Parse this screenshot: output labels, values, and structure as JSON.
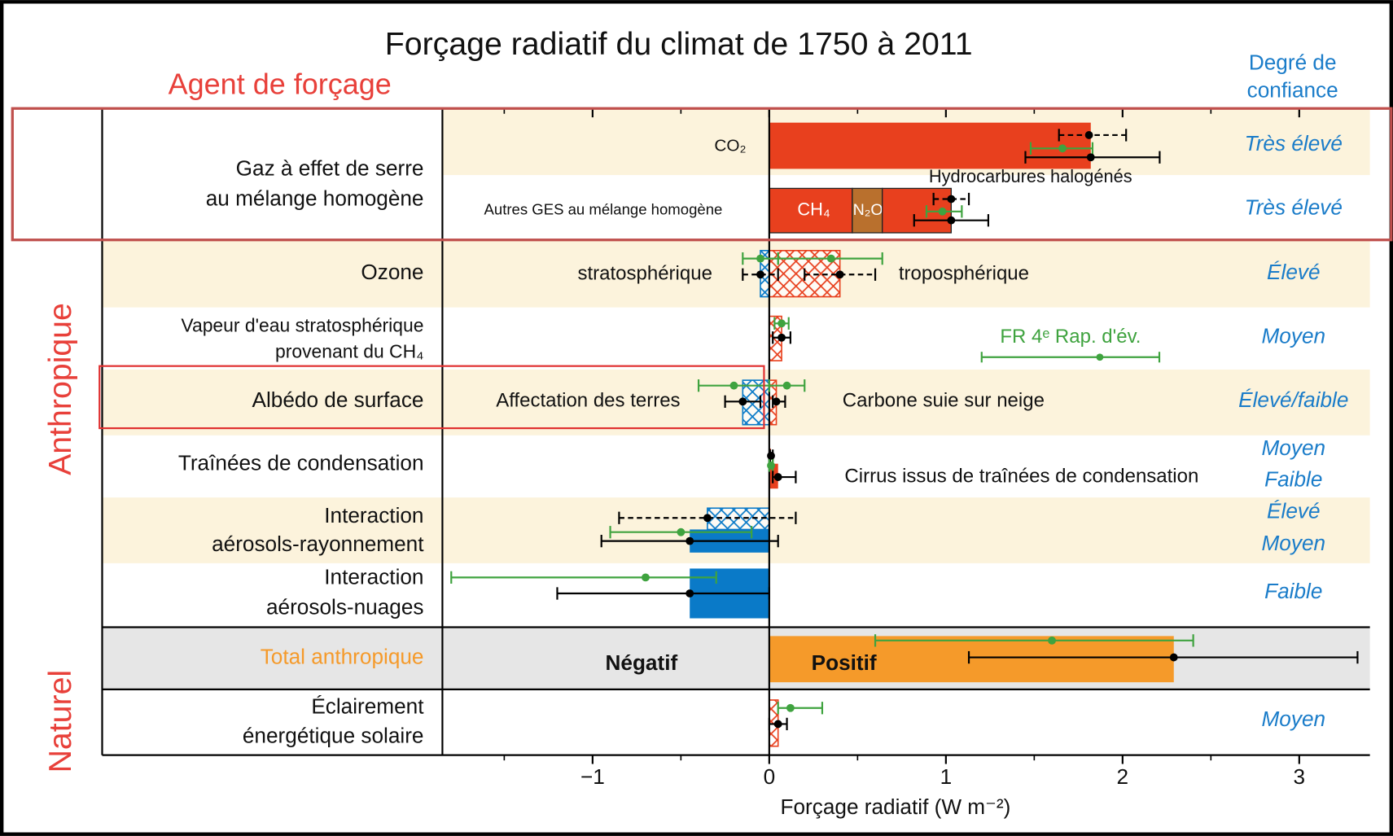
{
  "chart_data": {
    "type": "bar",
    "orientation": "horizontal",
    "title": "Forçage radiatif du climat de 1750 à 2011",
    "left_heading": "Agent de forçage",
    "right_heading": [
      "Degré de",
      "confiance"
    ],
    "x_label": "Forçage radiatif (W m⁻²)",
    "xlim": [
      -1.85,
      3.4
    ],
    "xticks": [
      {
        "value": -1,
        "label": "−1"
      },
      0,
      1,
      2,
      3
    ],
    "xticks_minor": [
      -1.5,
      -0.5,
      0.5,
      1.5,
      2.5,
      3.0
    ],
    "groups": [
      {
        "name": "Anthropique"
      },
      {
        "name": "Naturel"
      }
    ],
    "rows": [
      {
        "label": [
          "Gaz à effet de serre",
          "au mélange homogène"
        ],
        "confidence": [
          "Très élevé",
          "Très élevé"
        ],
        "bars": [
          {
            "name": "CO₂",
            "value": 1.82,
            "color": "#e8401e"
          },
          {
            "name": "CH₄",
            "value": 0.47,
            "color": "#e8401e"
          },
          {
            "name": "N₂O",
            "value": 0.17,
            "color": "#b9702d",
            "stack": true
          },
          {
            "name": "Hydrocarbures halogénés",
            "value": 0.39,
            "color": "#e8401e",
            "stack": true
          }
        ],
        "errors": [
          {
            "value": 1.81,
            "low": 1.64,
            "high": 2.02,
            "color": "#000000",
            "style": "dashed"
          },
          {
            "value": 1.66,
            "low": 1.48,
            "high": 1.83,
            "color": "#3fa33f",
            "style": "solid"
          },
          {
            "value": 1.82,
            "low": 1.45,
            "high": 2.21,
            "color": "#000000",
            "style": "solid"
          },
          {
            "value": 1.03,
            "low": 0.93,
            "high": 1.13,
            "color": "#000000",
            "style": "dashed"
          },
          {
            "value": 0.98,
            "low": 0.89,
            "high": 1.09,
            "color": "#3fa33f",
            "style": "solid"
          },
          {
            "value": 1.03,
            "low": 0.82,
            "high": 1.24,
            "color": "#000000",
            "style": "solid"
          }
        ],
        "notes": [
          "Autres GES au mélange homogène"
        ]
      },
      {
        "label": [
          "Ozone"
        ],
        "confidence": [
          "Élevé"
        ],
        "bars": [
          {
            "name": "stratosphérique",
            "value": -0.05,
            "color": "#0a7ac8",
            "hatch": true
          },
          {
            "name": "troposphérique",
            "value": 0.4,
            "color": "#e8401e",
            "hatch": true
          }
        ],
        "errors": [
          {
            "value": -0.05,
            "low": -0.15,
            "high": 0.05,
            "color": "#000000",
            "style": "dashed"
          },
          {
            "value": 0.4,
            "low": 0.2,
            "high": 0.6,
            "color": "#000000",
            "style": "dashed"
          },
          {
            "value": -0.05,
            "low": -0.15,
            "high": 0.05,
            "color": "#3fa33f",
            "style": "solid"
          },
          {
            "value": 0.35,
            "low": 0.05,
            "high": 0.64,
            "color": "#3fa33f",
            "style": "solid"
          }
        ]
      },
      {
        "label": [
          "Vapeur d'eau stratosphérique",
          "provenant du CH₄"
        ],
        "confidence": [
          "Moyen"
        ],
        "bars": [
          {
            "value": 0.07,
            "color": "#e8401e",
            "hatch": true
          }
        ],
        "errors": [
          {
            "value": 0.07,
            "low": 0.03,
            "high": 0.11,
            "color": "#3fa33f",
            "style": "solid"
          },
          {
            "value": 0.07,
            "low": 0.02,
            "high": 0.12,
            "color": "#000000",
            "style": "solid"
          }
        ],
        "notes": [
          "FR 4ᵉ Rap. d'év."
        ]
      },
      {
        "label": [
          "Albédo de surface"
        ],
        "confidence": [
          "Élevé/faible"
        ],
        "bars": [
          {
            "name": "Affectation des terres",
            "value": -0.15,
            "color": "#0a7ac8",
            "hatch": true
          },
          {
            "name": "Carbone suie sur neige",
            "value": 0.04,
            "color": "#e8401e",
            "hatch": true
          }
        ],
        "errors": [
          {
            "value": -0.2,
            "low": -0.4,
            "high": 0.0,
            "color": "#3fa33f",
            "style": "solid"
          },
          {
            "value": 0.1,
            "low": 0.0,
            "high": 0.2,
            "color": "#3fa33f",
            "style": "solid"
          },
          {
            "value": -0.15,
            "low": -0.25,
            "high": -0.05,
            "color": "#000000",
            "style": "solid"
          },
          {
            "value": 0.04,
            "low": 0.02,
            "high": 0.09,
            "color": "#000000",
            "style": "solid"
          }
        ]
      },
      {
        "label": [
          "Traînées de condensation"
        ],
        "confidence": [
          "Moyen",
          "Faible"
        ],
        "bars": [
          {
            "value": 0.01,
            "color": "#e8401e"
          },
          {
            "name": "Cirrus issus de traînées de condensation",
            "value": 0.05,
            "color": "#e8401e"
          }
        ],
        "errors": [
          {
            "value": 0.01,
            "low": 0.005,
            "high": 0.02,
            "color": "#000000",
            "style": "solid"
          },
          {
            "value": 0.01,
            "low": 0.0,
            "high": 0.02,
            "color": "#3fa33f",
            "style": "solid"
          },
          {
            "value": 0.05,
            "low": 0.02,
            "high": 0.15,
            "color": "#000000",
            "style": "solid"
          }
        ]
      },
      {
        "label": [
          "Interaction",
          "aérosols-rayonnement"
        ],
        "confidence": [
          "Élevé",
          "Moyen"
        ],
        "bars": [
          {
            "value": -0.35,
            "color": "#0a7ac8",
            "hatch": true
          },
          {
            "value": -0.45,
            "color": "#0a7ac8"
          }
        ],
        "errors": [
          {
            "value": -0.35,
            "low": -0.85,
            "high": 0.15,
            "color": "#000000",
            "style": "dashed"
          },
          {
            "value": -0.5,
            "low": -0.9,
            "high": -0.1,
            "color": "#3fa33f",
            "style": "solid"
          },
          {
            "value": -0.45,
            "low": -0.95,
            "high": 0.05,
            "color": "#000000",
            "style": "solid"
          }
        ]
      },
      {
        "label": [
          "Interaction",
          "aérosols-nuages"
        ],
        "confidence": [
          "Faible"
        ],
        "bars": [
          {
            "value": -0.45,
            "color": "#0a7ac8"
          }
        ],
        "errors": [
          {
            "value": -0.7,
            "low": -1.8,
            "high": -0.3,
            "color": "#3fa33f",
            "style": "solid"
          },
          {
            "value": -0.45,
            "low": -1.2,
            "high": 0.0,
            "color": "#000000",
            "style": "solid"
          }
        ]
      },
      {
        "label": [
          "Total anthropique"
        ],
        "bars": [
          {
            "value": 2.29,
            "color": "#f59a2a"
          }
        ],
        "errors": [
          {
            "value": 1.6,
            "low": 0.6,
            "high": 2.4,
            "color": "#3fa33f",
            "style": "solid"
          },
          {
            "value": 2.29,
            "low": 1.13,
            "high": 3.33,
            "color": "#000000",
            "style": "solid"
          }
        ],
        "notes": [
          "Négatif",
          "Positif"
        ]
      },
      {
        "label": [
          "Éclairement",
          "énergétique solaire"
        ],
        "confidence": [
          "Moyen"
        ],
        "bars": [
          {
            "value": 0.05,
            "color": "#e8401e",
            "hatch": true
          }
        ],
        "errors": [
          {
            "value": 0.12,
            "low": 0.05,
            "high": 0.3,
            "color": "#3fa33f",
            "style": "solid"
          },
          {
            "value": 0.05,
            "low": 0.0,
            "high": 0.1,
            "color": "#000000",
            "style": "solid"
          }
        ]
      }
    ]
  }
}
